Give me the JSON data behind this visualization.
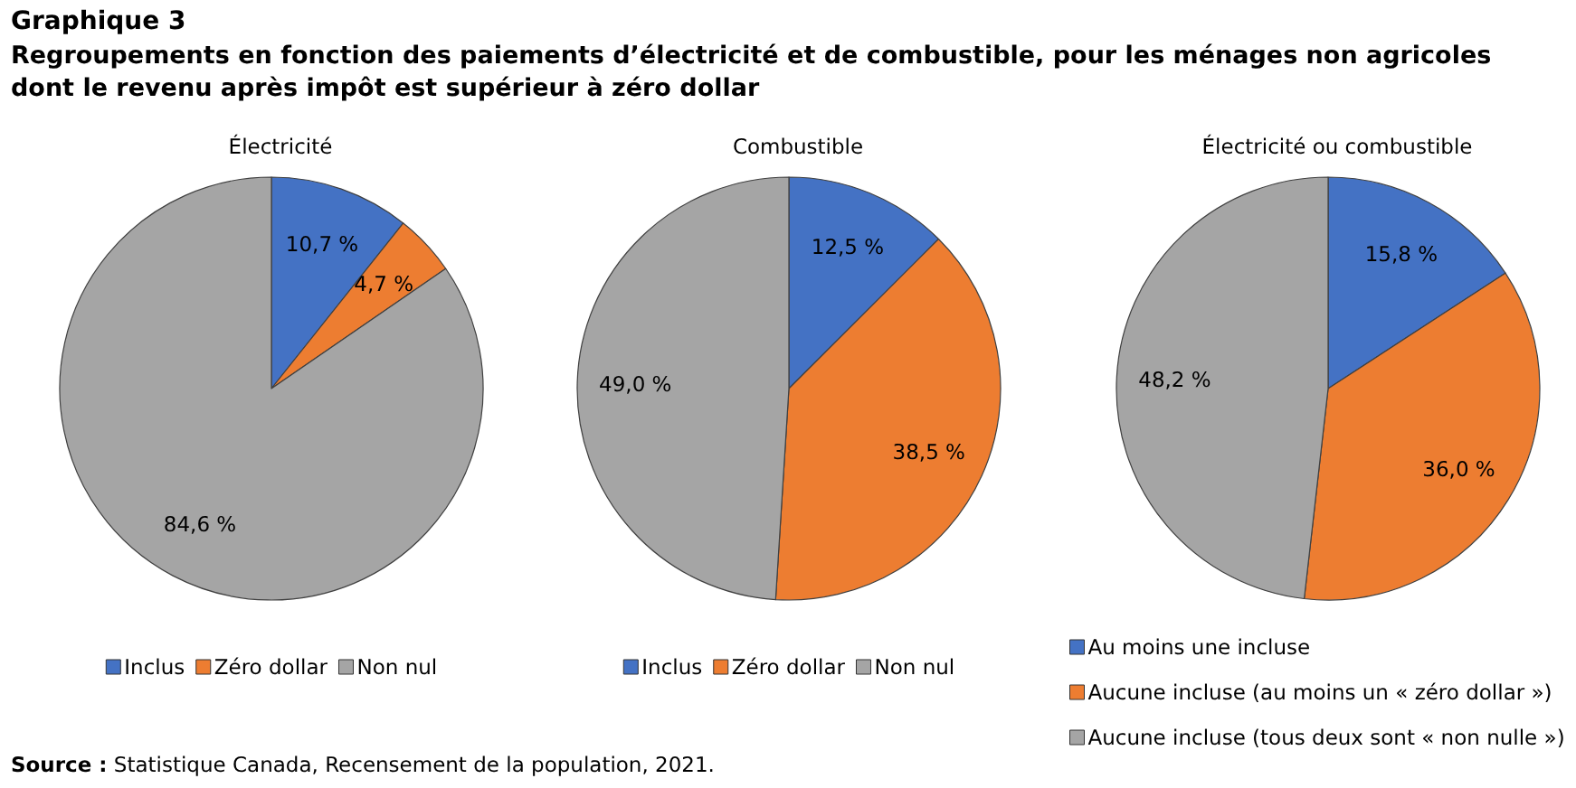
{
  "chart_data": [
    {
      "type": "other",
      "title": "Graphique 3",
      "subtitle": "Regroupements en fonction des paiements d’électricité et de combustible, pour les ménages non agricoles dont le revenu après impôt est supérieur à zéro dollar",
      "annotations": [
        "Source : Statistique Canada, Recensement de la population, 2021."
      ]
    },
    {
      "type": "pie",
      "title": "Électricité",
      "categories": [
        "Inclus",
        "Zéro dollar",
        "Non nul"
      ],
      "values": [
        10.7,
        4.7,
        84.6
      ],
      "value_labels": [
        "10,7 %",
        "4,7 %",
        "84,6 %"
      ],
      "colors": [
        "#4472c4",
        "#ed7d31",
        "#a5a5a5"
      ],
      "legend": "bottom"
    },
    {
      "type": "pie",
      "title": "Combustible",
      "categories": [
        "Inclus",
        "Zéro dollar",
        "Non nul"
      ],
      "values": [
        12.5,
        38.5,
        49.0
      ],
      "value_labels": [
        "12,5 %",
        "38,5 %",
        "49,0 %"
      ],
      "colors": [
        "#4472c4",
        "#ed7d31",
        "#a5a5a5"
      ],
      "legend": "bottom"
    },
    {
      "type": "pie",
      "title": "Électricité ou combustible",
      "categories": [
        "Au moins une incluse",
        "Aucune incluse (au moins un « zéro dollar »)",
        "Aucune incluse (tous deux sont « non nulle »)"
      ],
      "values": [
        15.8,
        36.0,
        48.2
      ],
      "value_labels": [
        "15,8 %",
        "36,0 %",
        "48,2 %"
      ],
      "colors": [
        "#4472c4",
        "#ed7d31",
        "#a5a5a5"
      ],
      "legend": "bottom"
    }
  ]
}
